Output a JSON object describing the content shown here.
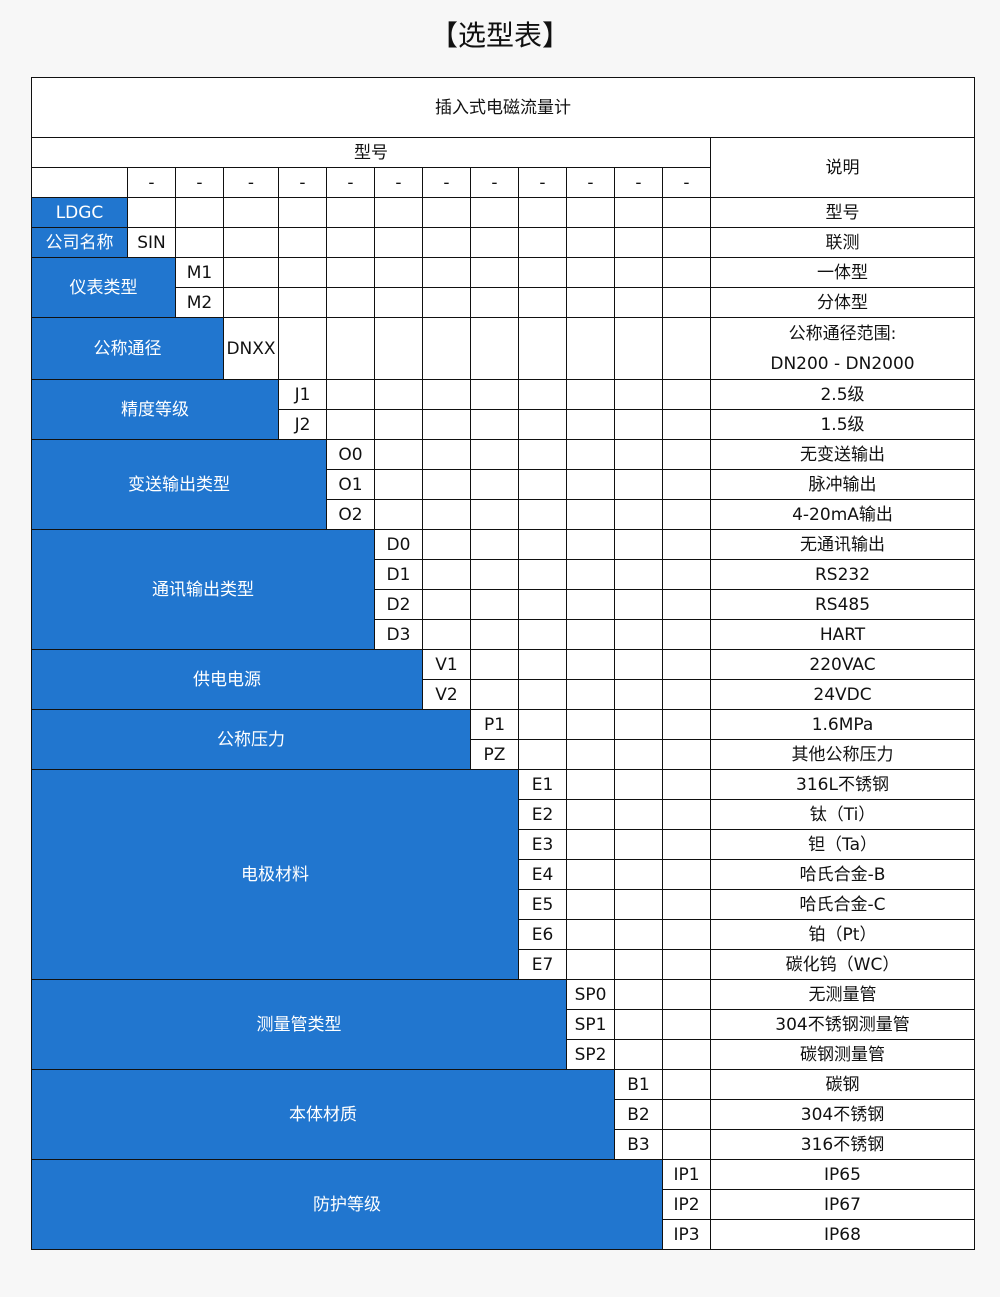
{
  "title": "【选型表】",
  "table": {
    "product": "插入式电磁流量计",
    "model_header": "型号",
    "desc_header": "说明",
    "dashes": [
      "-",
      "-",
      "-",
      "-",
      "-",
      "-",
      "-",
      "-",
      "-",
      "-",
      "-",
      "-"
    ],
    "groups": [
      {
        "label": "LDGC",
        "codes": [
          ""
        ],
        "descs": [
          "型号"
        ]
      },
      {
        "label": "公司名称",
        "codes": [
          "SIN"
        ],
        "descs": [
          "联测"
        ]
      },
      {
        "label": "仪表类型",
        "codes": [
          "M1",
          "M2"
        ],
        "descs": [
          "一体型",
          "分体型"
        ]
      },
      {
        "label": "公称通径",
        "codes": [
          "DNXX"
        ],
        "descs": [
          "公称通径范围:",
          "DN200 - DN2000"
        ]
      },
      {
        "label": "精度等级",
        "codes": [
          "J1",
          "J2"
        ],
        "descs": [
          "2.5级",
          "1.5级"
        ]
      },
      {
        "label": "变送输出类型",
        "codes": [
          "O0",
          "O1",
          "O2"
        ],
        "descs": [
          "无变送输出",
          "脉冲输出",
          "4-20mA输出"
        ]
      },
      {
        "label": "通讯输出类型",
        "codes": [
          "D0",
          "D1",
          "D2",
          "D3"
        ],
        "descs": [
          "无通讯输出",
          "RS232",
          "RS485",
          "HART"
        ]
      },
      {
        "label": "供电电源",
        "codes": [
          "V1",
          "V2"
        ],
        "descs": [
          "220VAC",
          "24VDC"
        ]
      },
      {
        "label": "公称压力",
        "codes": [
          "P1",
          "PZ"
        ],
        "descs": [
          "1.6MPa",
          "其他公称压力"
        ]
      },
      {
        "label": "电极材料",
        "codes": [
          "E1",
          "E2",
          "E3",
          "E4",
          "E5",
          "E6",
          "E7"
        ],
        "descs": [
          "316L不锈钢",
          "钛（Ti）",
          "钽（Ta）",
          "哈氏合金-B",
          "哈氏合金-C",
          "铂（Pt）",
          "碳化钨（WC）"
        ]
      },
      {
        "label": "测量管类型",
        "codes": [
          "SP0",
          "SP1",
          "SP2"
        ],
        "descs": [
          "无测量管",
          "304不锈钢测量管",
          "碳钢测量管"
        ]
      },
      {
        "label": "本体材质",
        "codes": [
          "B1",
          "B2",
          "B3"
        ],
        "descs": [
          "碳钢",
          "304不锈钢",
          "316不锈钢"
        ]
      },
      {
        "label": "防护等级",
        "codes": [
          "IP1",
          "IP2",
          "IP3"
        ],
        "descs": [
          "IP65",
          "IP67",
          "IP68"
        ]
      }
    ]
  },
  "colors": {
    "accent": "#2176cf",
    "background": "#f7f7f7"
  }
}
